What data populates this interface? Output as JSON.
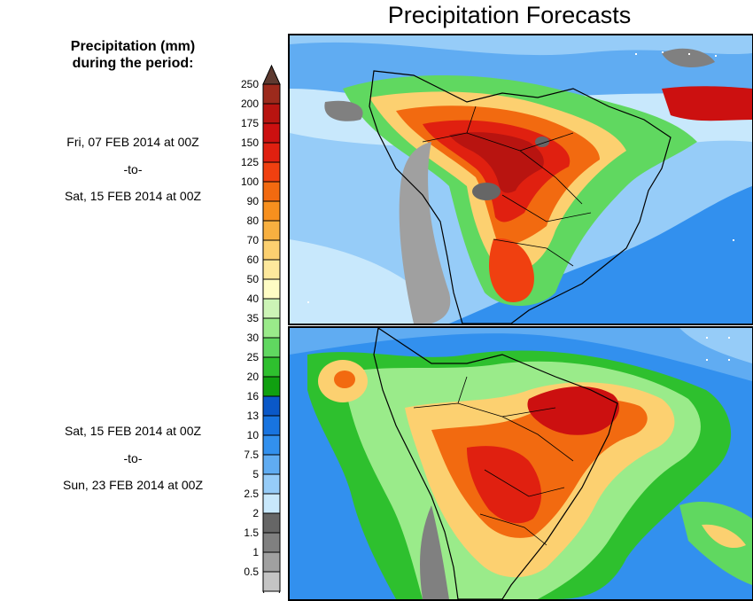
{
  "title": "Precipitation Forecasts",
  "legend": {
    "title_line1": "Precipitation (mm)",
    "title_line2": "during the period:",
    "stops": [
      {
        "label": "250",
        "color": "#9c2a1c"
      },
      {
        "label": "200",
        "color": "#b81410"
      },
      {
        "label": "175",
        "color": "#cc1010"
      },
      {
        "label": "150",
        "color": "#e02010"
      },
      {
        "label": "125",
        "color": "#f04010"
      },
      {
        "label": "100",
        "color": "#f26a10"
      },
      {
        "label": "90",
        "color": "#f7901e"
      },
      {
        "label": "80",
        "color": "#f8b040"
      },
      {
        "label": "70",
        "color": "#fcd070"
      },
      {
        "label": "60",
        "color": "#fde89c"
      },
      {
        "label": "50",
        "color": "#fefcc4"
      },
      {
        "label": "40",
        "color": "#ccf4b6"
      },
      {
        "label": "35",
        "color": "#9aeb8a"
      },
      {
        "label": "30",
        "color": "#60d860"
      },
      {
        "label": "25",
        "color": "#2ec02e"
      },
      {
        "label": "20",
        "color": "#10a010"
      },
      {
        "label": "16",
        "color": "#0a58c8"
      },
      {
        "label": "13",
        "color": "#1874e0"
      },
      {
        "label": "10",
        "color": "#3290ee"
      },
      {
        "label": "7.5",
        "color": "#60acf2"
      },
      {
        "label": "5",
        "color": "#96ccf8"
      },
      {
        "label": "2.5",
        "color": "#c8e8fc"
      },
      {
        "label": "2",
        "color": "#666666"
      },
      {
        "label": "1.5",
        "color": "#808080"
      },
      {
        "label": "1",
        "color": "#a0a0a0"
      },
      {
        "label": "0.5",
        "color": "#c4c4c4"
      }
    ],
    "cap_top_color": "#5e3a30",
    "cap_bottom_color": "#ffffff"
  },
  "periods": [
    {
      "start": "Fri, 07 FEB 2014 at 00Z",
      "separator": "-to-",
      "end": "Sat, 15 FEB 2014 at 00Z"
    },
    {
      "start": "Sat, 15 FEB 2014 at 00Z",
      "separator": "-to-",
      "end": "Sun, 23 FEB 2014 at 00Z"
    }
  ],
  "maps": [
    {
      "name": "period-1-map",
      "region": "South America"
    },
    {
      "name": "period-2-map",
      "region": "South America"
    }
  ]
}
